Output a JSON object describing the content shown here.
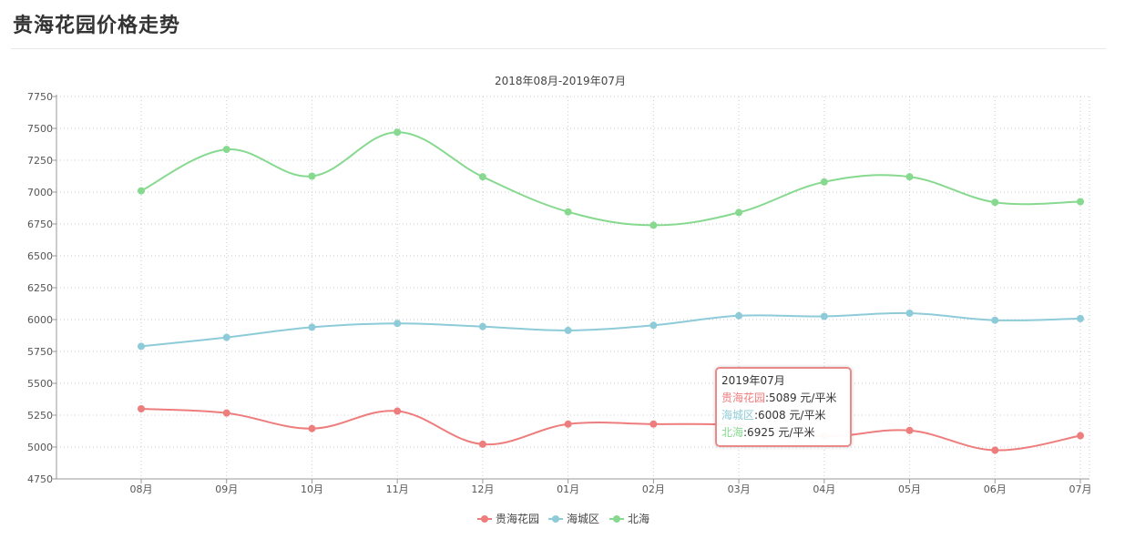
{
  "page": {
    "title": "贵海花园价格走势"
  },
  "tooltip": {
    "header": "2019年07月",
    "rows": [
      {
        "name": "贵海花园",
        "value": ":5089 元/平米",
        "color": "#ee7d7d"
      },
      {
        "name": "海城区",
        "value": ":6008 元/平米",
        "color": "#8ecbd8"
      },
      {
        "name": "北海",
        "value": ":6925 元/平米",
        "color": "#86d98f"
      }
    ]
  },
  "chart_data": {
    "type": "line",
    "title": "",
    "subtitle": "2018年08月-2019年07月",
    "xlabel": "",
    "ylabel": "",
    "categories": [
      "08月",
      "09月",
      "10月",
      "11月",
      "12月",
      "01月",
      "02月",
      "03月",
      "04月",
      "05月",
      "06月",
      "07月"
    ],
    "ylim": [
      4750,
      7750
    ],
    "yticks": [
      4750,
      5000,
      5250,
      5500,
      5750,
      6000,
      6250,
      6500,
      6750,
      7000,
      7250,
      7500,
      7750
    ],
    "grid": true,
    "legend_position": "bottom-center",
    "series": [
      {
        "name": "贵海花园",
        "color": "#ee7d7d",
        "values": [
          5300,
          5267,
          5145,
          5282,
          5022,
          5180,
          5180,
          5170,
          5085,
          5130,
          4975,
          5089
        ]
      },
      {
        "name": "海城区",
        "color": "#8ecbd8",
        "values": [
          5790,
          5860,
          5940,
          5970,
          5945,
          5915,
          5955,
          6030,
          6025,
          6050,
          5995,
          6008
        ]
      },
      {
        "name": "北海",
        "color": "#86d98f",
        "values": [
          7010,
          7335,
          7125,
          7470,
          7120,
          6845,
          6740,
          6840,
          7080,
          7120,
          6920,
          6925
        ]
      }
    ]
  }
}
